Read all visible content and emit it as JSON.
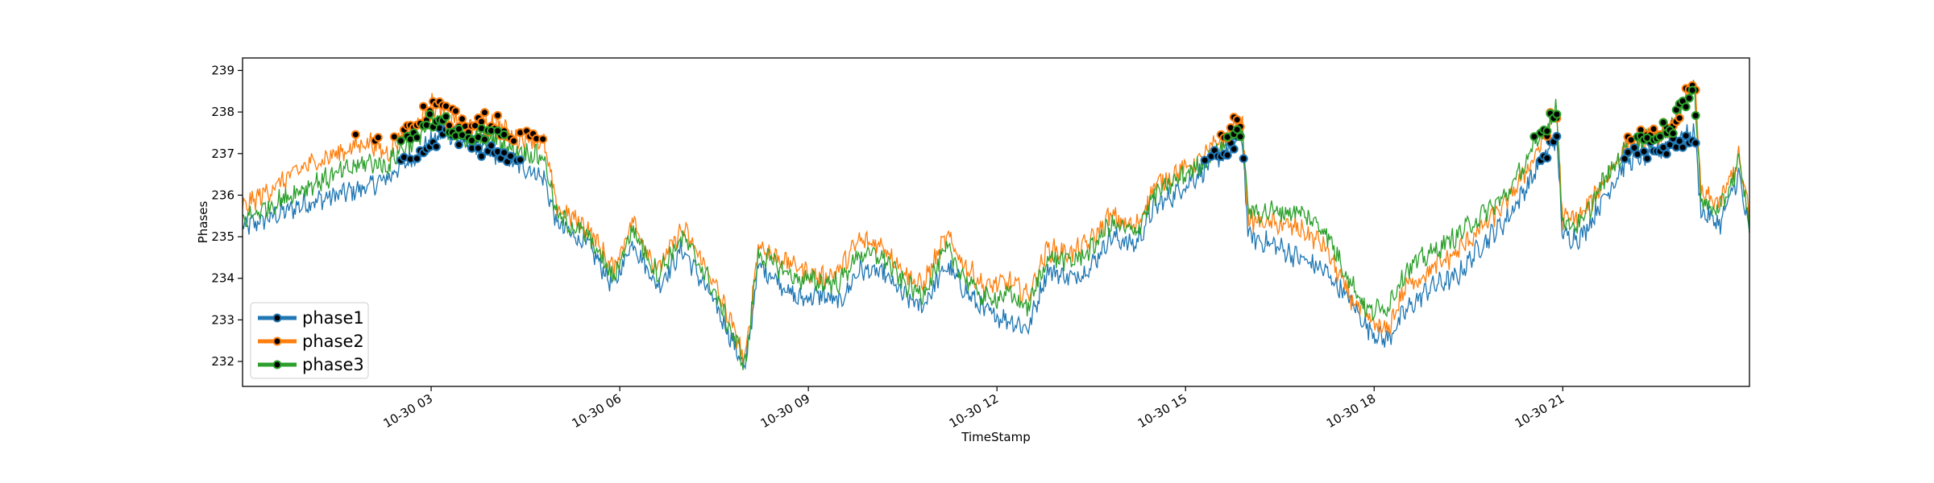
{
  "chart_data": {
    "type": "line",
    "xlabel": "TimeStamp",
    "ylabel": "Phases",
    "title": "",
    "x_range": [
      "10-30 00:00",
      "23:58"
    ],
    "ylim": [
      231.4,
      239.3
    ],
    "x_ticks": [
      {
        "label": "10-30 03",
        "hour": 3
      },
      {
        "label": "10-30 06",
        "hour": 6
      },
      {
        "label": "10-30 09",
        "hour": 9
      },
      {
        "label": "10-30 12",
        "hour": 12
      },
      {
        "label": "10-30 15",
        "hour": 15
      },
      {
        "label": "10-30 18",
        "hour": 18
      },
      {
        "label": "10-30 21",
        "hour": 21
      }
    ],
    "y_ticks": [
      232,
      233,
      234,
      235,
      236,
      237,
      238,
      239
    ],
    "grid": false,
    "legend": {
      "placement": "lower-left"
    },
    "series": [
      {
        "name": "phase1",
        "color": "#1f77b4",
        "points": [
          [
            0.0,
            235.2
          ],
          [
            0.5,
            235.5
          ],
          [
            1.0,
            235.8
          ],
          [
            1.5,
            236.0
          ],
          [
            2.0,
            236.2
          ],
          [
            2.3,
            236.4
          ],
          [
            2.5,
            236.7
          ],
          [
            2.8,
            237.0
          ],
          [
            3.0,
            237.3
          ],
          [
            3.3,
            237.5
          ],
          [
            3.6,
            237.2
          ],
          [
            4.0,
            237.0
          ],
          [
            4.3,
            236.8
          ],
          [
            4.6,
            236.6
          ],
          [
            4.8,
            236.4
          ],
          [
            5.0,
            235.3
          ],
          [
            5.5,
            234.8
          ],
          [
            5.9,
            233.8
          ],
          [
            6.2,
            234.9
          ],
          [
            6.6,
            233.8
          ],
          [
            7.0,
            234.7
          ],
          [
            7.4,
            233.7
          ],
          [
            7.7,
            232.8
          ],
          [
            8.0,
            231.8
          ],
          [
            8.2,
            234.3
          ],
          [
            8.5,
            234.0
          ],
          [
            8.8,
            233.5
          ],
          [
            9.2,
            233.6
          ],
          [
            9.5,
            233.4
          ],
          [
            9.8,
            234.2
          ],
          [
            10.2,
            234.1
          ],
          [
            10.5,
            233.6
          ],
          [
            10.8,
            233.3
          ],
          [
            11.2,
            234.3
          ],
          [
            11.5,
            233.7
          ],
          [
            11.8,
            233.2
          ],
          [
            12.2,
            233.0
          ],
          [
            12.5,
            232.8
          ],
          [
            12.8,
            234.2
          ],
          [
            13.2,
            234.0
          ],
          [
            13.5,
            234.3
          ],
          [
            13.8,
            235.0
          ],
          [
            14.2,
            234.8
          ],
          [
            14.5,
            235.7
          ],
          [
            14.8,
            236.0
          ],
          [
            15.2,
            236.5
          ],
          [
            15.6,
            237.0
          ],
          [
            15.9,
            237.4
          ],
          [
            16.0,
            235.0
          ],
          [
            16.4,
            234.8
          ],
          [
            16.8,
            234.5
          ],
          [
            17.2,
            234.2
          ],
          [
            17.6,
            233.5
          ],
          [
            17.9,
            232.8
          ],
          [
            18.2,
            232.5
          ],
          [
            18.5,
            233.2
          ],
          [
            18.9,
            233.8
          ],
          [
            19.3,
            234.0
          ],
          [
            19.7,
            234.8
          ],
          [
            20.1,
            235.4
          ],
          [
            20.5,
            236.4
          ],
          [
            20.9,
            237.4
          ],
          [
            21.0,
            235.0
          ],
          [
            21.3,
            235.0
          ],
          [
            21.6,
            235.8
          ],
          [
            22.0,
            236.8
          ],
          [
            22.4,
            237.0
          ],
          [
            22.7,
            237.2
          ],
          [
            23.1,
            237.5
          ],
          [
            23.2,
            235.6
          ],
          [
            23.5,
            235.3
          ],
          [
            23.8,
            236.5
          ],
          [
            23.97,
            235.0
          ]
        ]
      },
      {
        "name": "phase2",
        "color": "#ff7f0e",
        "points": [
          [
            0.0,
            235.7
          ],
          [
            0.5,
            236.2
          ],
          [
            1.0,
            236.7
          ],
          [
            1.5,
            237.0
          ],
          [
            2.0,
            237.3
          ],
          [
            2.3,
            237.0
          ],
          [
            2.5,
            237.4
          ],
          [
            2.8,
            237.7
          ],
          [
            3.0,
            238.2
          ],
          [
            3.3,
            237.9
          ],
          [
            3.6,
            237.6
          ],
          [
            4.0,
            237.8
          ],
          [
            4.3,
            237.4
          ],
          [
            4.6,
            237.4
          ],
          [
            4.8,
            237.2
          ],
          [
            5.0,
            235.7
          ],
          [
            5.5,
            235.2
          ],
          [
            5.9,
            234.2
          ],
          [
            6.2,
            235.4
          ],
          [
            6.6,
            234.2
          ],
          [
            7.0,
            235.2
          ],
          [
            7.4,
            234.2
          ],
          [
            7.7,
            233.2
          ],
          [
            8.0,
            232.0
          ],
          [
            8.2,
            234.8
          ],
          [
            8.5,
            234.5
          ],
          [
            8.8,
            234.3
          ],
          [
            9.2,
            234.0
          ],
          [
            9.5,
            234.2
          ],
          [
            9.8,
            234.9
          ],
          [
            10.2,
            234.8
          ],
          [
            10.5,
            234.2
          ],
          [
            10.8,
            233.8
          ],
          [
            11.2,
            235.0
          ],
          [
            11.5,
            234.3
          ],
          [
            11.8,
            233.8
          ],
          [
            12.2,
            233.9
          ],
          [
            12.5,
            233.6
          ],
          [
            12.8,
            234.7
          ],
          [
            13.2,
            234.6
          ],
          [
            13.5,
            234.9
          ],
          [
            13.8,
            235.5
          ],
          [
            14.2,
            235.2
          ],
          [
            14.5,
            236.2
          ],
          [
            14.8,
            236.5
          ],
          [
            15.2,
            236.8
          ],
          [
            15.6,
            237.4
          ],
          [
            15.9,
            237.8
          ],
          [
            16.0,
            235.4
          ],
          [
            16.4,
            235.3
          ],
          [
            16.8,
            235.2
          ],
          [
            17.2,
            234.8
          ],
          [
            17.6,
            233.6
          ],
          [
            17.9,
            233.0
          ],
          [
            18.2,
            232.7
          ],
          [
            18.5,
            233.8
          ],
          [
            18.9,
            234.2
          ],
          [
            19.3,
            234.6
          ],
          [
            19.7,
            235.2
          ],
          [
            20.1,
            235.8
          ],
          [
            20.5,
            236.8
          ],
          [
            20.9,
            238.0
          ],
          [
            21.0,
            235.4
          ],
          [
            21.3,
            235.5
          ],
          [
            21.6,
            236.2
          ],
          [
            22.0,
            237.2
          ],
          [
            22.4,
            237.4
          ],
          [
            22.7,
            237.5
          ],
          [
            23.1,
            238.7
          ],
          [
            23.2,
            236.0
          ],
          [
            23.5,
            235.8
          ],
          [
            23.8,
            236.9
          ],
          [
            23.97,
            235.5
          ]
        ]
      },
      {
        "name": "phase3",
        "color": "#2ca02c",
        "points": [
          [
            0.0,
            235.4
          ],
          [
            0.5,
            235.8
          ],
          [
            1.0,
            236.2
          ],
          [
            1.5,
            236.5
          ],
          [
            2.0,
            236.8
          ],
          [
            2.3,
            236.7
          ],
          [
            2.5,
            237.1
          ],
          [
            2.8,
            237.4
          ],
          [
            3.0,
            237.8
          ],
          [
            3.3,
            237.6
          ],
          [
            3.6,
            237.3
          ],
          [
            4.0,
            237.4
          ],
          [
            4.3,
            237.1
          ],
          [
            4.6,
            237.0
          ],
          [
            4.8,
            236.9
          ],
          [
            5.0,
            235.5
          ],
          [
            5.5,
            235.0
          ],
          [
            5.9,
            234.0
          ],
          [
            6.2,
            235.2
          ],
          [
            6.6,
            234.1
          ],
          [
            7.0,
            235.0
          ],
          [
            7.4,
            234.0
          ],
          [
            7.7,
            233.0
          ],
          [
            8.0,
            231.9
          ],
          [
            8.2,
            234.6
          ],
          [
            8.5,
            234.3
          ],
          [
            8.8,
            234.0
          ],
          [
            9.2,
            233.9
          ],
          [
            9.5,
            233.9
          ],
          [
            9.8,
            234.6
          ],
          [
            10.2,
            234.5
          ],
          [
            10.5,
            233.9
          ],
          [
            10.8,
            233.6
          ],
          [
            11.2,
            234.7
          ],
          [
            11.5,
            234.0
          ],
          [
            11.8,
            233.5
          ],
          [
            12.2,
            233.6
          ],
          [
            12.5,
            233.3
          ],
          [
            12.8,
            234.5
          ],
          [
            13.2,
            234.4
          ],
          [
            13.5,
            234.7
          ],
          [
            13.8,
            235.3
          ],
          [
            14.2,
            235.1
          ],
          [
            14.5,
            236.0
          ],
          [
            14.8,
            236.3
          ],
          [
            15.2,
            236.7
          ],
          [
            15.6,
            237.2
          ],
          [
            15.9,
            237.6
          ],
          [
            16.0,
            235.6
          ],
          [
            16.4,
            235.6
          ],
          [
            16.8,
            235.6
          ],
          [
            17.2,
            235.2
          ],
          [
            17.6,
            234.0
          ],
          [
            17.9,
            233.2
          ],
          [
            18.2,
            233.3
          ],
          [
            18.5,
            234.2
          ],
          [
            18.9,
            234.6
          ],
          [
            19.3,
            235.0
          ],
          [
            19.7,
            235.5
          ],
          [
            20.1,
            236.0
          ],
          [
            20.5,
            237.0
          ],
          [
            20.9,
            238.1
          ],
          [
            21.0,
            235.3
          ],
          [
            21.3,
            235.3
          ],
          [
            21.6,
            236.2
          ],
          [
            22.0,
            237.1
          ],
          [
            22.4,
            237.4
          ],
          [
            22.7,
            237.6
          ],
          [
            23.1,
            238.6
          ],
          [
            23.2,
            235.8
          ],
          [
            23.5,
            235.6
          ],
          [
            23.8,
            236.8
          ],
          [
            23.97,
            235.3
          ]
        ]
      }
    ]
  }
}
